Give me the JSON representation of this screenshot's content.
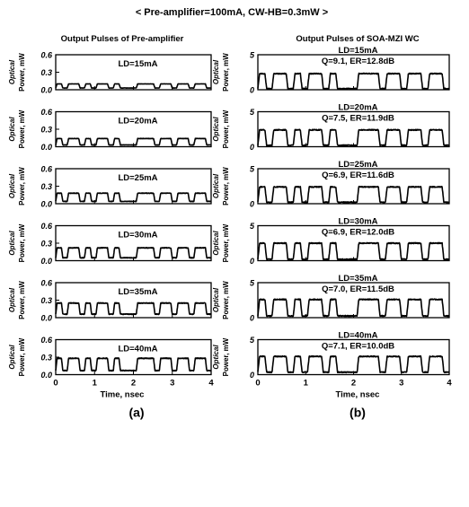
{
  "header": "< Pre-amplifier=100mA, CW-HB=0.3mW >",
  "columns": [
    {
      "title": "Output Pulses of Pre-amplifier",
      "ylabel_line1": "Optical",
      "ylabel_line2": "Power, mW",
      "yticks": [
        "0.0",
        "0.3",
        "0.6"
      ],
      "xticks": [
        "0",
        "1",
        "2",
        "3",
        "4"
      ],
      "xlabel": "Time, nsec",
      "caption": "(a)",
      "panels": [
        {
          "label1": "LD=15mA",
          "label2": ""
        },
        {
          "label1": "LD=20mA",
          "label2": ""
        },
        {
          "label1": "LD=25mA",
          "label2": ""
        },
        {
          "label1": "LD=30mA",
          "label2": ""
        },
        {
          "label1": "LD=35mA",
          "label2": ""
        },
        {
          "label1": "LD=40mA",
          "label2": ""
        }
      ]
    },
    {
      "title": "Output Pulses of SOA-MZI WC",
      "ylabel_line1": "Optical",
      "ylabel_line2": "Power, mW",
      "yticks": [
        "0",
        "5"
      ],
      "xticks": [
        "0",
        "1",
        "2",
        "3",
        "4"
      ],
      "xlabel": "Time, nsec",
      "caption": "(b)",
      "panels": [
        {
          "label1": "LD=15mA",
          "label2": "Q=9.1, ER=12.8dB"
        },
        {
          "label1": "LD=20mA",
          "label2": "Q=7.5, ER=11.9dB"
        },
        {
          "label1": "LD=25mA",
          "label2": "Q=6.9, ER=11.6dB"
        },
        {
          "label1": "LD=30mA",
          "label2": "Q=6.9, ER=12.0dB"
        },
        {
          "label1": "LD=35mA",
          "label2": "Q=7.0, ER=11.5dB"
        },
        {
          "label1": "LD=40mA",
          "label2": "Q=7.1, ER=10.0dB"
        }
      ]
    }
  ],
  "chart_data": {
    "type": "line",
    "x_unit": "nsec",
    "bit_pattern": [
      1,
      0,
      1,
      1,
      0,
      1,
      0,
      1,
      1,
      0,
      1,
      0,
      0,
      0,
      1,
      1,
      1,
      0,
      1,
      1,
      0,
      1,
      1,
      0,
      1,
      1,
      0
    ],
    "bit_period_ns": 0.14815,
    "charts": [
      {
        "id": "a",
        "xlim": [
          0,
          4
        ],
        "ylim": [
          0,
          0.6
        ],
        "xlabel": "Time, nsec",
        "ylabel": "Optical Power, mW",
        "series": [
          {
            "name": "LD=15mA",
            "high": 0.1,
            "low": 0.03
          },
          {
            "name": "LD=20mA",
            "high": 0.14,
            "low": 0.03
          },
          {
            "name": "LD=25mA",
            "high": 0.18,
            "low": 0.04
          },
          {
            "name": "LD=30mA",
            "high": 0.22,
            "low": 0.05
          },
          {
            "name": "LD=35mA",
            "high": 0.25,
            "low": 0.06
          },
          {
            "name": "LD=40mA",
            "high": 0.28,
            "low": 0.07
          }
        ]
      },
      {
        "id": "b",
        "xlim": [
          0,
          4
        ],
        "ylim": [
          0,
          5
        ],
        "xlabel": "Time, nsec",
        "ylabel": "Optical Power, mW",
        "series": [
          {
            "name": "LD=15mA",
            "Q": 9.1,
            "ER_dB": 12.8,
            "high": 2.3,
            "low": 0.15
          },
          {
            "name": "LD=20mA",
            "Q": 7.5,
            "ER_dB": 11.9,
            "high": 2.4,
            "low": 0.2
          },
          {
            "name": "LD=25mA",
            "Q": 6.9,
            "ER_dB": 11.6,
            "high": 2.4,
            "low": 0.2
          },
          {
            "name": "LD=30mA",
            "Q": 6.9,
            "ER_dB": 12.0,
            "high": 2.5,
            "low": 0.2
          },
          {
            "name": "LD=35mA",
            "Q": 7.0,
            "ER_dB": 11.5,
            "high": 2.6,
            "low": 0.25
          },
          {
            "name": "LD=40mA",
            "Q": 7.1,
            "ER_dB": 10.0,
            "high": 2.6,
            "low": 0.35
          }
        ]
      }
    ]
  }
}
